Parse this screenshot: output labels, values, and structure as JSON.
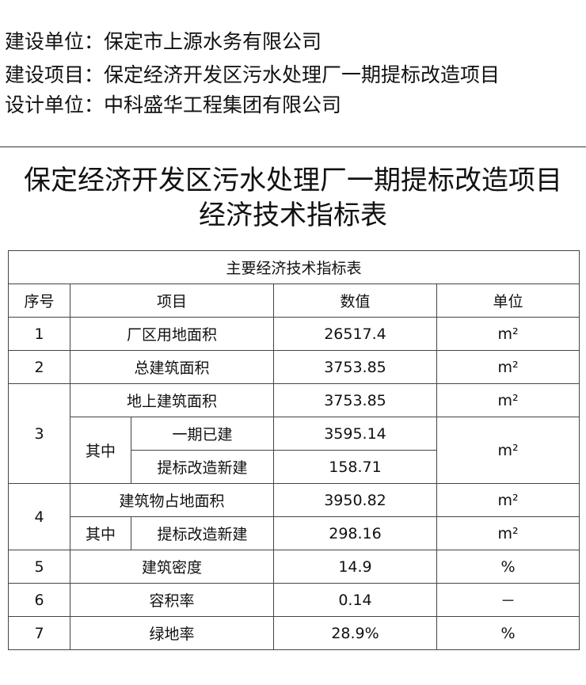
{
  "header": {
    "owner": "建设单位：保定市上源水务有限公司",
    "project": "建设项目：保定经济开发区污水处理厂一期提标改造项目",
    "designer": "设计单位：中科盛华工程集团有限公司"
  },
  "title": {
    "line1": "保定经济开发区污水处理厂一期提标改造项目",
    "line2": "经济技术指标表"
  },
  "table": {
    "caption": "主要经济技术指标表",
    "columns": [
      "序号",
      "项目",
      "数值",
      "单位"
    ],
    "rows": [
      {
        "no": "1",
        "item": "厂区用地面积",
        "value": "26517.4",
        "unit": "m²"
      },
      {
        "no": "2",
        "item": "总建筑面积",
        "value": "3753.85",
        "unit": "m²"
      },
      {
        "no": "3",
        "item": "地上建筑面积",
        "value": "3753.85",
        "unit": "m²",
        "sub_label": "其中",
        "subs": [
          {
            "item": "一期已建",
            "value": "3595.14"
          },
          {
            "item": "提标改造新建",
            "value": "158.71"
          }
        ],
        "sub_unit": "m²"
      },
      {
        "no": "4",
        "item": "建筑物占地面积",
        "value": "3950.82",
        "unit": "m²",
        "sub_label": "其中",
        "subs": [
          {
            "item": "提标改造新建",
            "value": "298.16",
            "unit": "m²"
          }
        ]
      },
      {
        "no": "5",
        "item": "建筑密度",
        "value": "14.9",
        "unit": "%"
      },
      {
        "no": "6",
        "item": "容积率",
        "value": "0.14",
        "unit": "－"
      },
      {
        "no": "7",
        "item": "绿地率",
        "value": "28.9%",
        "unit": "%"
      }
    ]
  }
}
